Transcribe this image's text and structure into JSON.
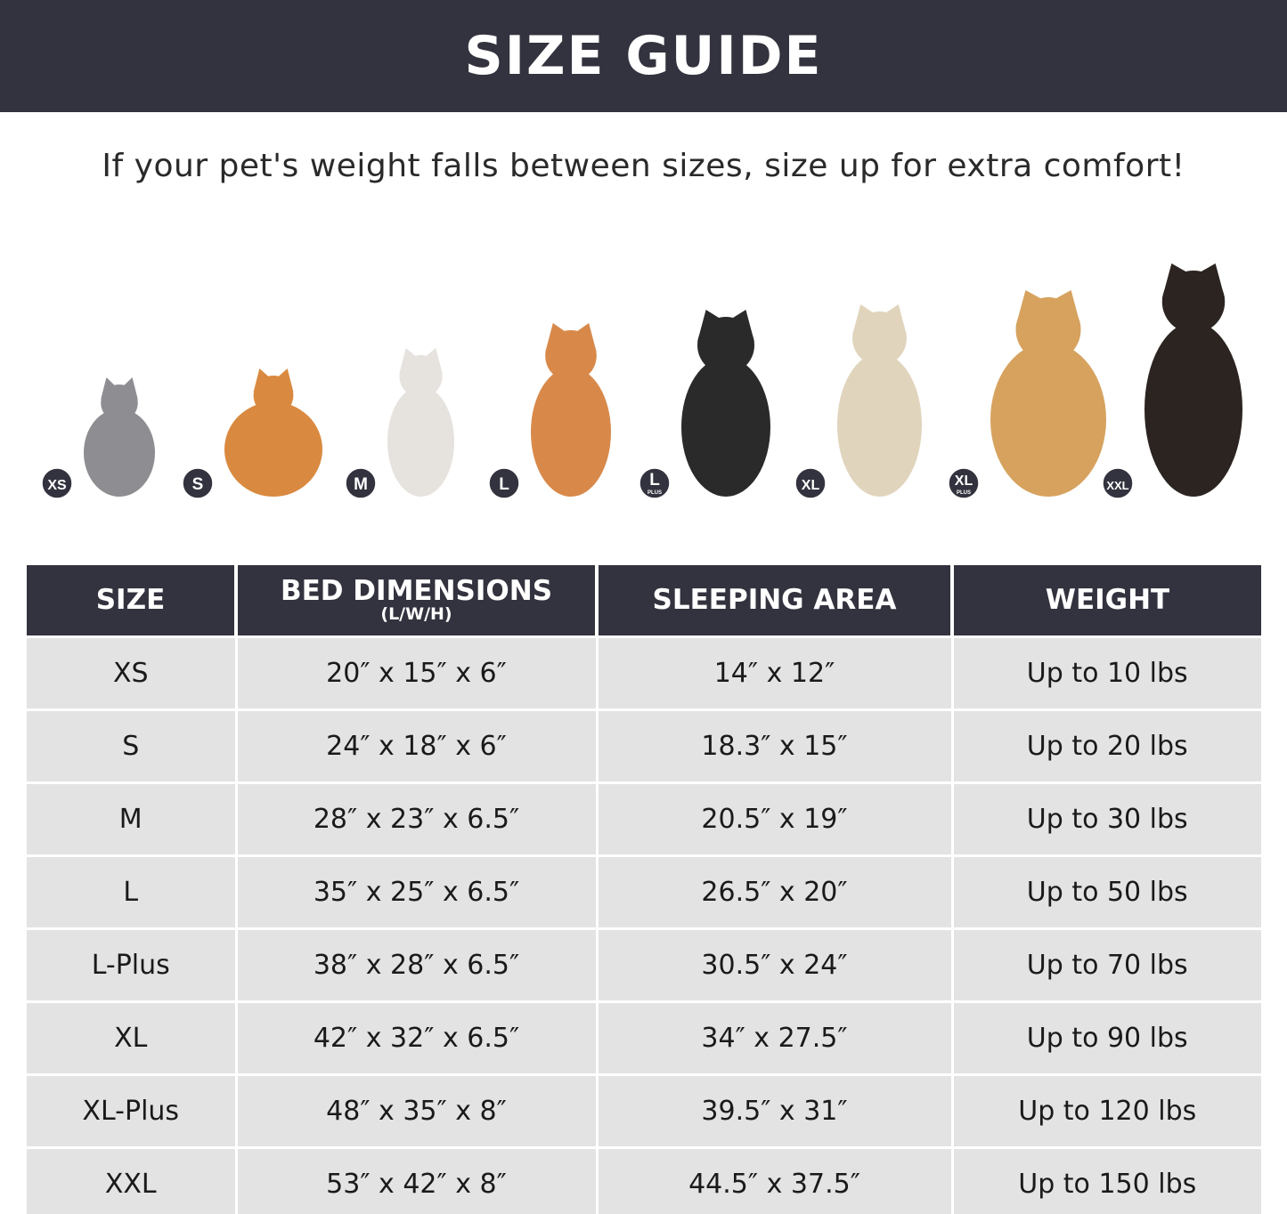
{
  "title": "SIZE GUIDE",
  "subtitle": "If your pet's weight falls between sizes, size up for extra comfort!",
  "colors": {
    "header_bg": "#33333f",
    "row_bg": "#e3e3e3",
    "badge_bg": "#33333f"
  },
  "pets": [
    {
      "badge": "XS",
      "badge_sub": "",
      "animal": "british-shorthair-cat",
      "color": "#8e8e92"
    },
    {
      "badge": "S",
      "badge_sub": "",
      "animal": "pomeranian",
      "color": "#d98a40"
    },
    {
      "badge": "M",
      "badge_sub": "",
      "animal": "french-bulldog",
      "color": "#e6e2de"
    },
    {
      "badge": "L",
      "badge_sub": "",
      "animal": "shiba-inu",
      "color": "#d8894a"
    },
    {
      "badge": "L",
      "badge_sub": "PLUS",
      "animal": "border-collie",
      "color": "#2a2a2a"
    },
    {
      "badge": "XL",
      "badge_sub": "",
      "animal": "labrador",
      "color": "#e0d4bd"
    },
    {
      "badge": "XL",
      "badge_sub": "PLUS",
      "animal": "golden-retriever",
      "color": "#d6a25e"
    },
    {
      "badge": "XXL",
      "badge_sub": "",
      "animal": "doberman",
      "color": "#2b2420"
    }
  ],
  "table": {
    "headers": {
      "size": "SIZE",
      "bed": "BED DIMENSIONS",
      "bed_sub": "(L/W/H)",
      "sleeping": "SLEEPING AREA",
      "weight": "WEIGHT"
    },
    "rows": [
      {
        "size": "XS",
        "bed": "20″ x 15″ x 6″",
        "sleeping": "14″ x 12″",
        "weight": "Up to 10 lbs"
      },
      {
        "size": "S",
        "bed": "24″ x 18″ x 6″",
        "sleeping": "18.3″ x 15″",
        "weight": "Up to 20 lbs"
      },
      {
        "size": "M",
        "bed": "28″ x 23″ x 6.5″",
        "sleeping": "20.5″ x 19″",
        "weight": "Up to 30 lbs"
      },
      {
        "size": "L",
        "bed": "35″ x 25″ x 6.5″",
        "sleeping": "26.5″ x 20″",
        "weight": "Up to 50 lbs"
      },
      {
        "size": "L-Plus",
        "bed": "38″ x 28″ x 6.5″",
        "sleeping": "30.5″ x 24″",
        "weight": "Up to 70 lbs"
      },
      {
        "size": "XL",
        "bed": "42″ x 32″ x 6.5″",
        "sleeping": "34″ x 27.5″",
        "weight": "Up to 90 lbs"
      },
      {
        "size": "XL-Plus",
        "bed": "48″ x 35″ x 8″",
        "sleeping": "39.5″ x 31″",
        "weight": "Up to 120 lbs"
      },
      {
        "size": "XXL",
        "bed": "53″ x 42″ x 8″",
        "sleeping": "44.5″ x 37.5″",
        "weight": "Up to 150 lbs"
      }
    ]
  }
}
